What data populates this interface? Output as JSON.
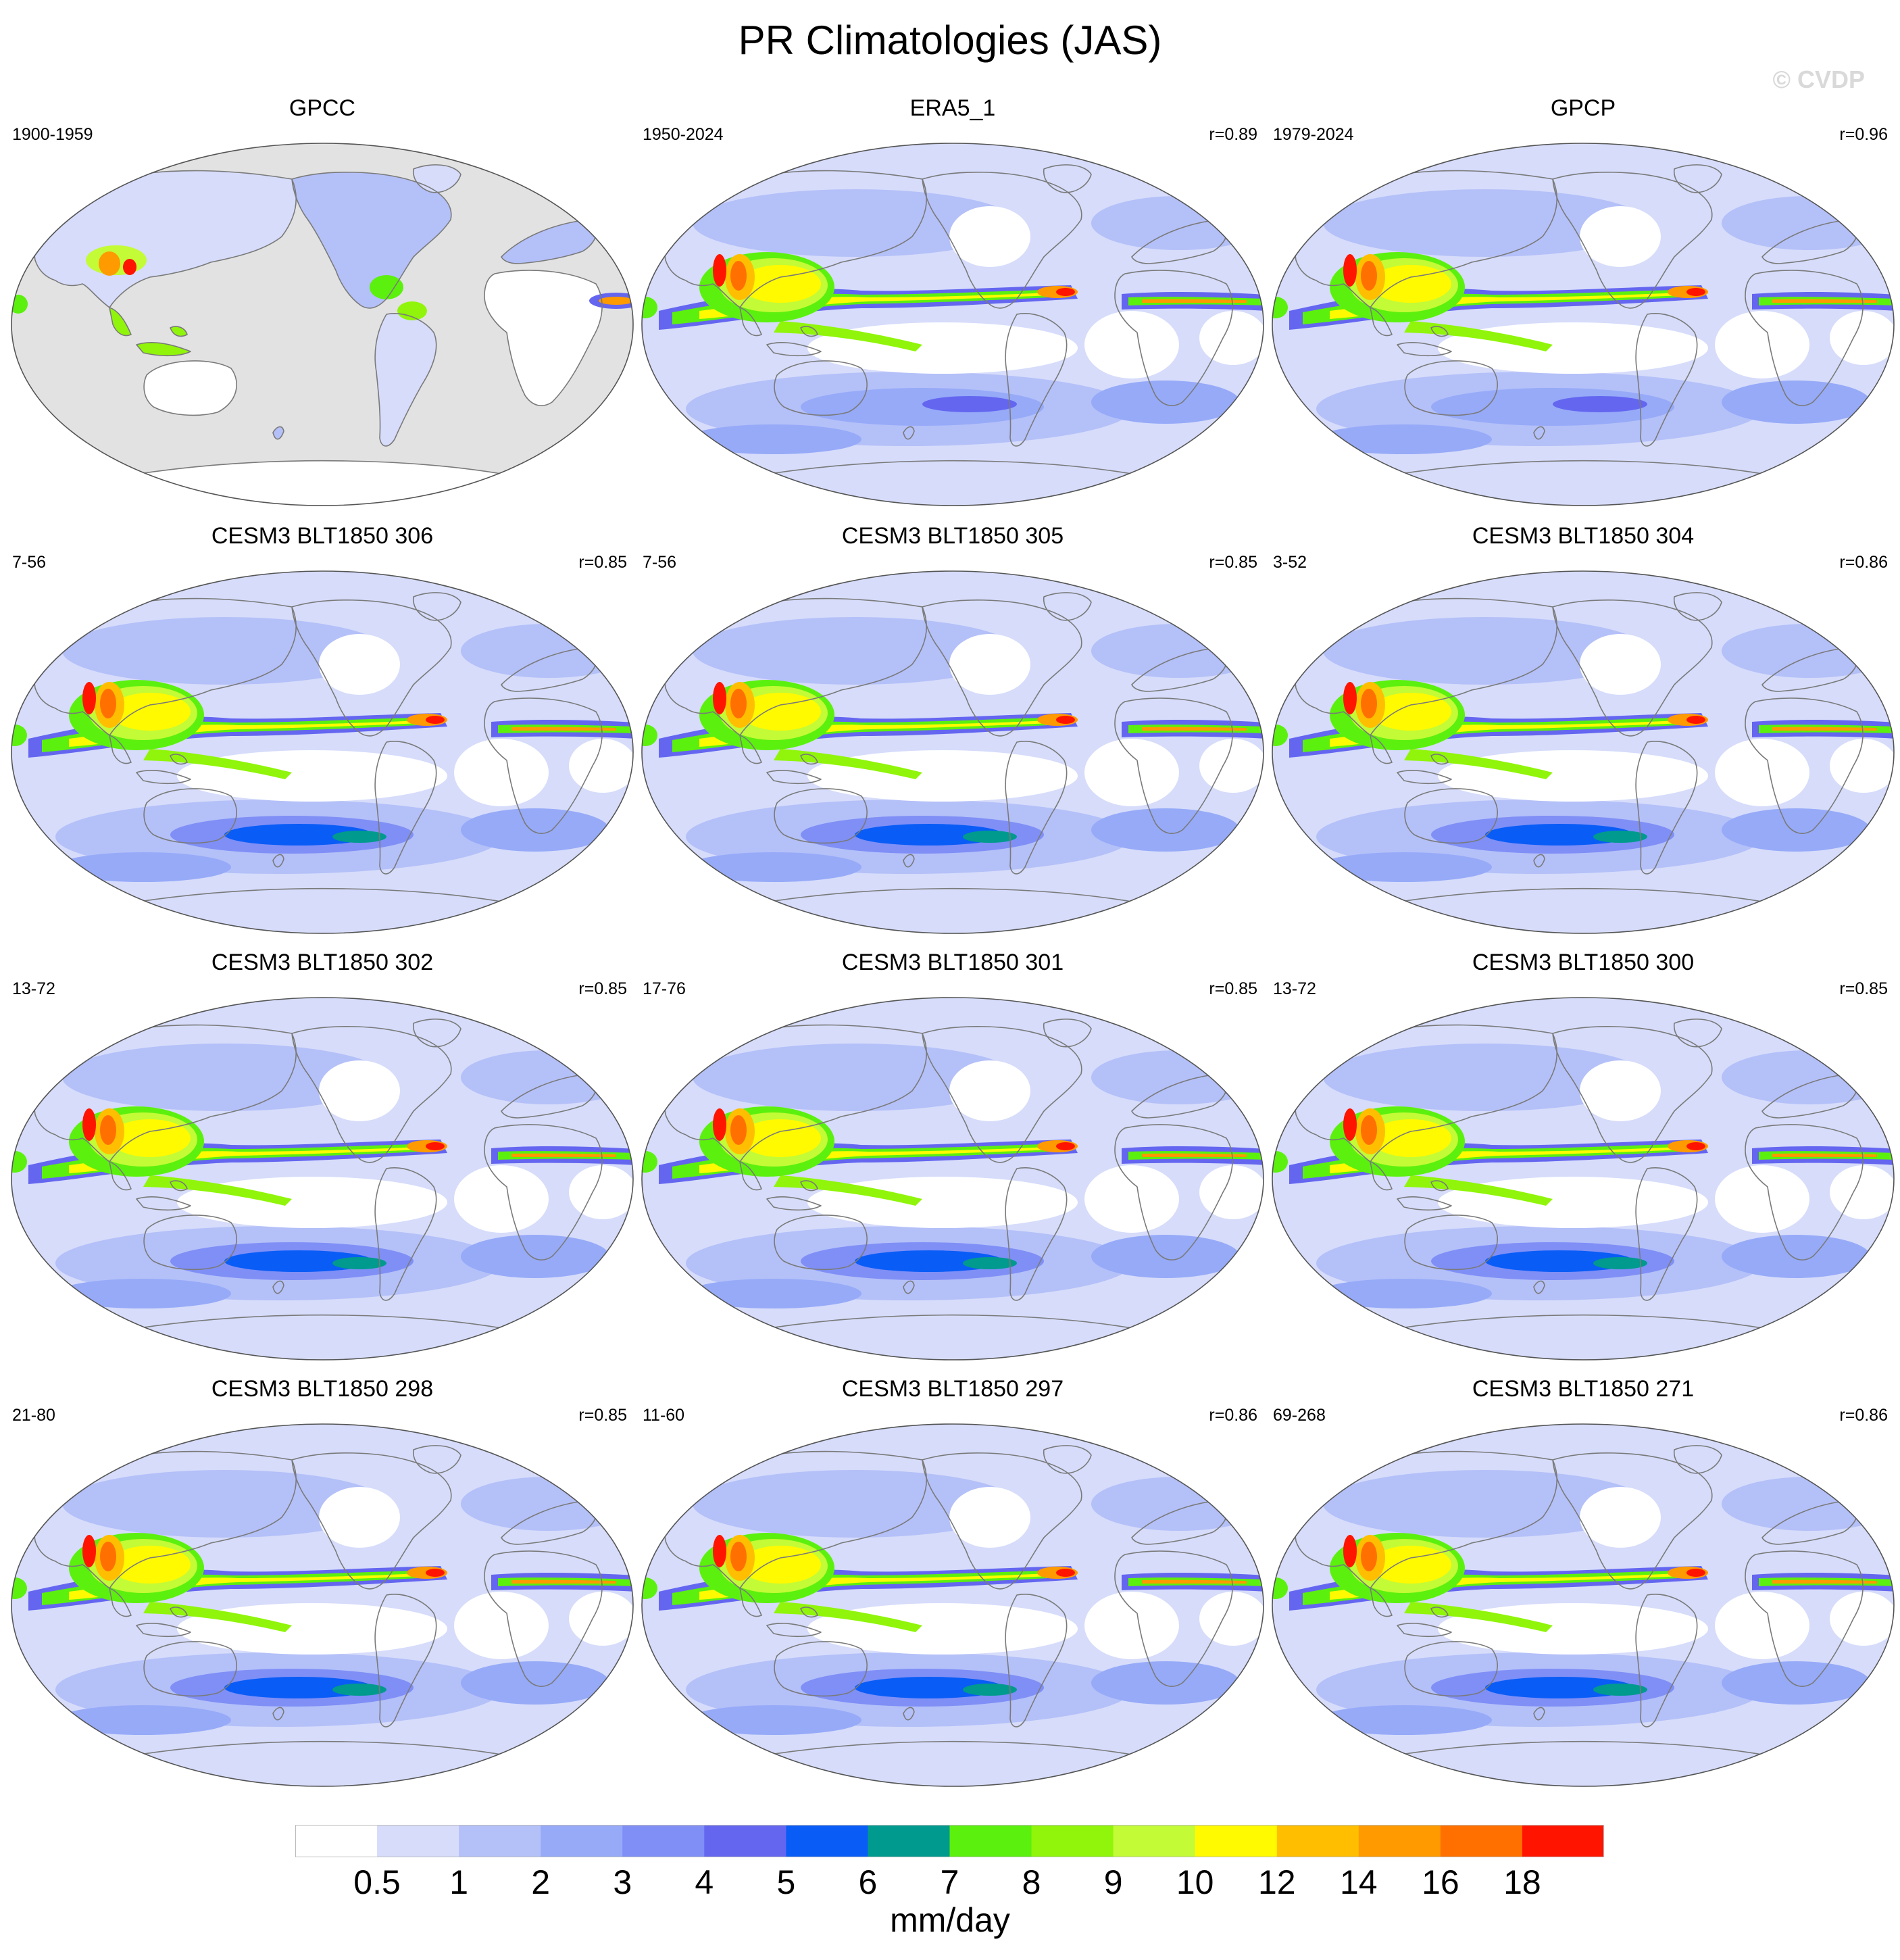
{
  "figure": {
    "title": "PR Climatologies (JAS)",
    "watermark": "© CVDP",
    "units": "mm/day"
  },
  "panels": [
    {
      "title": "GPCC",
      "years": "1900-1959",
      "corr": "",
      "type": "obs_land"
    },
    {
      "title": "ERA5_1",
      "years": "1950-2024",
      "corr": "r=0.89",
      "type": "reanalysis"
    },
    {
      "title": "GPCP",
      "years": "1979-2024",
      "corr": "r=0.96",
      "type": "obs"
    },
    {
      "title": "CESM3 BLT1850 306",
      "years": "7-56",
      "corr": "r=0.85",
      "type": "model"
    },
    {
      "title": "CESM3 BLT1850 305",
      "years": "7-56",
      "corr": "r=0.85",
      "type": "model"
    },
    {
      "title": "CESM3 BLT1850 304",
      "years": "3-52",
      "corr": "r=0.86",
      "type": "model"
    },
    {
      "title": "CESM3 BLT1850 302",
      "years": "13-72",
      "corr": "r=0.85",
      "type": "model"
    },
    {
      "title": "CESM3 BLT1850 301",
      "years": "17-76",
      "corr": "r=0.85",
      "type": "model"
    },
    {
      "title": "CESM3 BLT1850 300",
      "years": "13-72",
      "corr": "r=0.85",
      "type": "model"
    },
    {
      "title": "CESM3 BLT1850 298",
      "years": "21-80",
      "corr": "r=0.85",
      "type": "model"
    },
    {
      "title": "CESM3 BLT1850 297",
      "years": "11-60",
      "corr": "r=0.86",
      "type": "model"
    },
    {
      "title": "CESM3 BLT1850 271",
      "years": "69-268",
      "corr": "r=0.86",
      "type": "model"
    }
  ],
  "colorbar": {
    "labels": [
      "0.5",
      "1",
      "2",
      "3",
      "4",
      "5",
      "6",
      "7",
      "8",
      "9",
      "10",
      "12",
      "14",
      "16",
      "18"
    ],
    "colors": [
      "#ffffff",
      "#d6dcfa",
      "#b4c0f8",
      "#96aaf8",
      "#7f8ff6",
      "#6466f0",
      "#0a5cf6",
      "#009a8e",
      "#5cf00e",
      "#90f50a",
      "#c3fb36",
      "#fffa00",
      "#ffbf00",
      "#ff9a00",
      "#ff7000",
      "#ff1400"
    ]
  },
  "palette": {
    "land_missing": "#e2e2e2",
    "coast": "#7a7a7a",
    "ocean_mid": "#b4c0f8"
  }
}
